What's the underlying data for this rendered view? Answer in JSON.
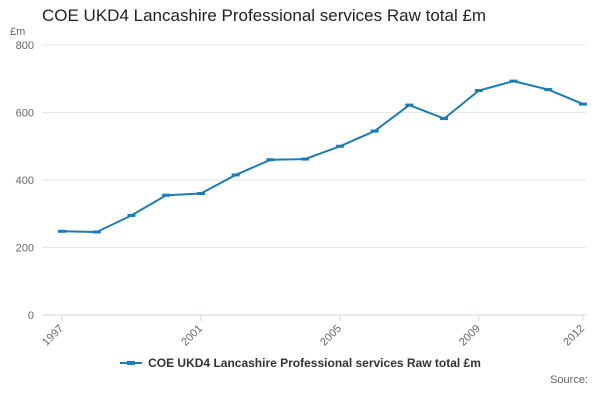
{
  "title": "COE UKD4 Lancashire Professional services Raw total £m",
  "y_axis": {
    "unit_label": "£m"
  },
  "legend": {
    "label": "COE UKD4 Lancashire Professional services Raw total £m"
  },
  "source": {
    "label": "Source:"
  },
  "colors": {
    "series": "#1c7cb5",
    "grid": "#e6e6e6",
    "axis": "#ccd6eb",
    "tick_text": "#666666"
  },
  "chart_data": {
    "type": "line",
    "title": "COE UKD4 Lancashire Professional services Raw total £m",
    "x": [
      1997,
      1998,
      1999,
      2000,
      2001,
      2002,
      2003,
      2004,
      2005,
      2006,
      2007,
      2008,
      2009,
      2010,
      2011,
      2012
    ],
    "series": [
      {
        "name": "COE UKD4 Lancashire Professional services Raw total £m",
        "values": [
          248,
          246,
          295,
          355,
          360,
          415,
          460,
          462,
          500,
          545,
          622,
          582,
          665,
          693,
          668,
          625
        ],
        "color": "#1c7cb5"
      }
    ],
    "xticks": [
      1997,
      2001,
      2005,
      2009,
      2012
    ],
    "yticks": [
      0,
      200,
      400,
      600,
      800
    ],
    "ylim": [
      0,
      800
    ],
    "xlabel": "",
    "ylabel": "£m",
    "grid": true,
    "legend_position": "bottom"
  }
}
